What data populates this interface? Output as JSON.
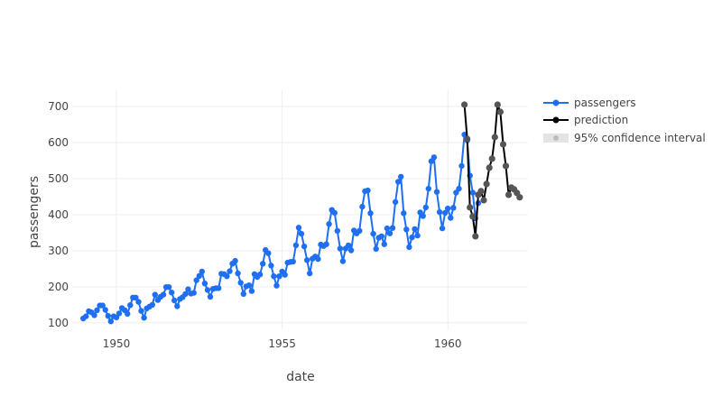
{
  "chart_data": {
    "type": "line",
    "title": "",
    "xlabel": "date",
    "ylabel": "passengers",
    "xlim": [
      "1948-09-01",
      "1962-06-01"
    ],
    "ylim": [
      82,
      745
    ],
    "x_ticks": [
      "1950",
      "1955",
      "1960"
    ],
    "x_tick_values": [
      "1950-01-01",
      "1955-01-01",
      "1960-01-01"
    ],
    "y_ticks": [
      100,
      200,
      300,
      400,
      500,
      600,
      700
    ],
    "grid": true,
    "legend_position": "top-right",
    "legend": [
      "passengers",
      "prediction",
      "95% confidence interval"
    ],
    "colors": {
      "passengers": "#1f6ff2",
      "prediction": "#000000",
      "prediction_markers": "#555555",
      "interval": "#d9d9d9"
    },
    "series": [
      {
        "name": "passengers",
        "start": "1949-01",
        "step": "month",
        "values": [
          112,
          118,
          132,
          129,
          121,
          135,
          148,
          148,
          136,
          119,
          104,
          118,
          115,
          126,
          141,
          135,
          125,
          149,
          170,
          170,
          158,
          133,
          114,
          140,
          145,
          150,
          178,
          163,
          172,
          178,
          199,
          199,
          184,
          162,
          146,
          166,
          171,
          180,
          193,
          181,
          183,
          218,
          230,
          242,
          209,
          191,
          172,
          194,
          196,
          196,
          236,
          235,
          229,
          243,
          264,
          272,
          237,
          211,
          180,
          201,
          204,
          188,
          235,
          227,
          234,
          264,
          302,
          293,
          259,
          229,
          203,
          229,
          242,
          233,
          267,
          269,
          270,
          315,
          364,
          347,
          312,
          274,
          237,
          278,
          284,
          277,
          317,
          313,
          318,
          374,
          413,
          405,
          355,
          306,
          271,
          306,
          315,
          301,
          356,
          348,
          355,
          422,
          465,
          467,
          404,
          347,
          305,
          336,
          340,
          318,
          362,
          348,
          363,
          435,
          491,
          505,
          404,
          359,
          310,
          337,
          360,
          342,
          406,
          396,
          420,
          472,
          548,
          559,
          463,
          407,
          362,
          405,
          417,
          391,
          419,
          461,
          472,
          535,
          622,
          606,
          508,
          461,
          390,
          432
        ]
      },
      {
        "name": "prediction",
        "start": "1960-07",
        "step": "month",
        "values": [
          705,
          610,
          420,
          395,
          340,
          455,
          465,
          440,
          485,
          530,
          555,
          615,
          705,
          685,
          595,
          535,
          455,
          475,
          470,
          460,
          448
        ]
      }
    ]
  }
}
